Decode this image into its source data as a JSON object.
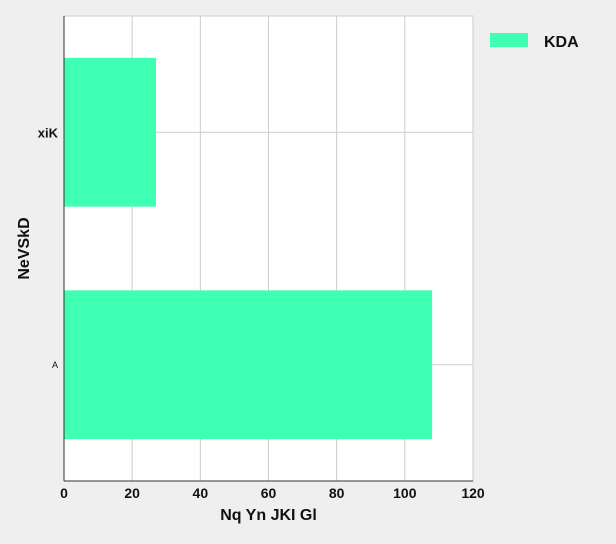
{
  "chart_data": {
    "type": "bar",
    "orientation": "horizontal",
    "categories": [
      "A",
      "xiK"
    ],
    "series": [
      {
        "name": "KDA",
        "values": [
          108,
          27
        ]
      }
    ],
    "xlabel": "Nq Yn JKI Gl",
    "ylabel": "NeVSkD",
    "xlim": [
      0,
      120
    ],
    "xticks": [
      0,
      20,
      40,
      60,
      80,
      100,
      120
    ],
    "grid": true,
    "legend": "top-right outside",
    "colors": {
      "bar": "#3fffb2",
      "plot_background": "#ffffff",
      "page_background": "#efefef",
      "grid": "#cccccc"
    }
  }
}
